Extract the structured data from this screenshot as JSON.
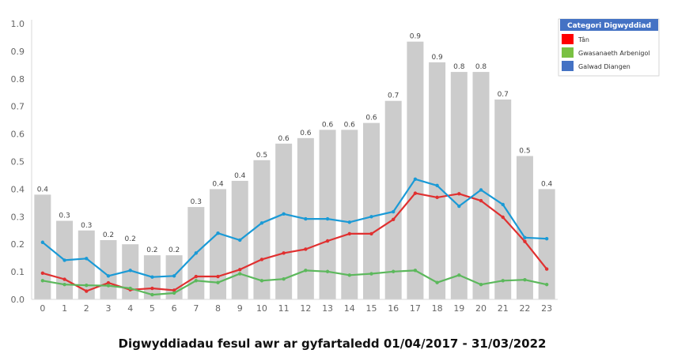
{
  "chart_data": {
    "type": "bar",
    "caption": "Digwyddiadau fesul awr ar gyfartaledd  01/04/2017 - 31/03/2022",
    "categories": [
      "0",
      "1",
      "2",
      "3",
      "4",
      "5",
      "6",
      "7",
      "8",
      "9",
      "10",
      "11",
      "12",
      "13",
      "14",
      "15",
      "16",
      "17",
      "18",
      "19",
      "20",
      "21",
      "22",
      "23"
    ],
    "bar_values": [
      0.38,
      0.285,
      0.25,
      0.215,
      0.2,
      0.16,
      0.16,
      0.335,
      0.4,
      0.43,
      0.505,
      0.565,
      0.585,
      0.615,
      0.615,
      0.64,
      0.72,
      0.935,
      0.86,
      0.825,
      0.825,
      0.725,
      0.52,
      0.4
    ],
    "bar_labels": [
      "0.4",
      "0.3",
      "0.3",
      "0.2",
      "0.2",
      "0.2",
      "0.2",
      "0.3",
      "0.4",
      "0.4",
      "0.5",
      "0.6",
      "0.6",
      "0.6",
      "0.6",
      "0.6",
      "0.7",
      "0.9",
      "0.9",
      "0.8",
      "0.8",
      "0.7",
      "0.5",
      "0.4"
    ],
    "series": [
      {
        "name": "Tân",
        "color": "#e03030",
        "values": [
          0.095,
          0.073,
          0.03,
          0.06,
          0.035,
          0.04,
          0.033,
          0.083,
          0.083,
          0.108,
          0.145,
          0.168,
          0.182,
          0.212,
          0.238,
          0.238,
          0.29,
          0.385,
          0.37,
          0.383,
          0.358,
          0.298,
          0.21,
          0.11
        ]
      },
      {
        "name": "Gwasanaeth Arbenigol",
        "color": "#5cb85c",
        "values": [
          0.068,
          0.054,
          0.051,
          0.05,
          0.04,
          0.017,
          0.023,
          0.068,
          0.061,
          0.093,
          0.068,
          0.074,
          0.105,
          0.101,
          0.088,
          0.093,
          0.101,
          0.105,
          0.061,
          0.088,
          0.054,
          0.068,
          0.071,
          0.054
        ]
      },
      {
        "name": "Galwad Diangen",
        "color": "#1a9ad6",
        "values": [
          0.207,
          0.142,
          0.148,
          0.085,
          0.105,
          0.081,
          0.085,
          0.168,
          0.24,
          0.215,
          0.277,
          0.31,
          0.292,
          0.292,
          0.28,
          0.3,
          0.318,
          0.436,
          0.413,
          0.338,
          0.397,
          0.344,
          0.224,
          0.22
        ]
      }
    ],
    "legend": {
      "title": "Categori Digwyddiad",
      "entries": [
        {
          "label": "Tân",
          "swatch": "#ff0000"
        },
        {
          "label": "Gwasanaeth Arbenigol",
          "swatch": "#7ac143"
        },
        {
          "label": "Galwad Diangen",
          "swatch": "#4472c4"
        }
      ],
      "title_color": "#4472c4",
      "placement": "top-right"
    },
    "y_ticks": [
      "0.0",
      "0.1",
      "0.2",
      "0.3",
      "0.4",
      "0.5",
      "0.6",
      "0.7",
      "0.8",
      "0.9",
      "1.0"
    ],
    "ylim": [
      0,
      1.0
    ],
    "bar_color": "#cccccc",
    "grid": false
  }
}
